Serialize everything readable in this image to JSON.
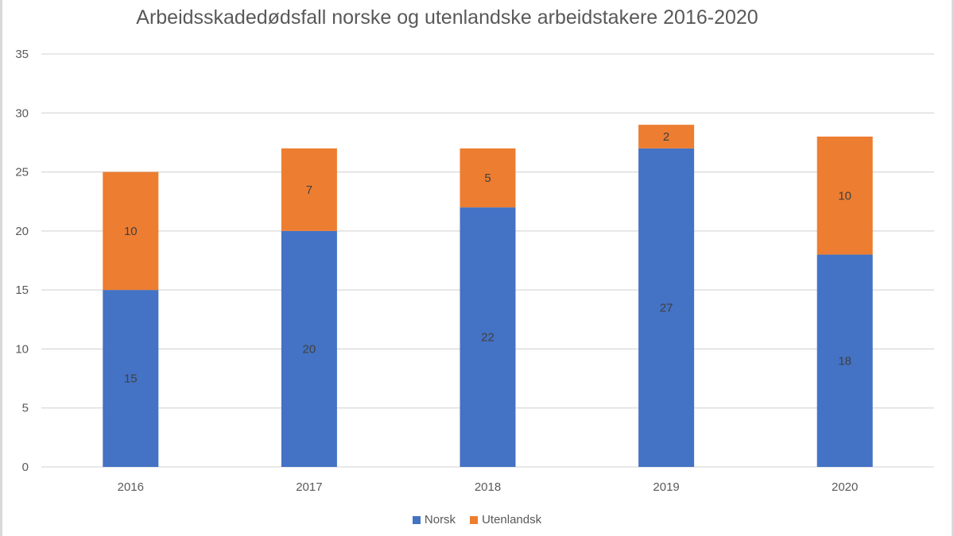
{
  "chart_data": {
    "type": "bar",
    "stacked": true,
    "title": "Arbeidsskadedødsfall  norske og utenlandske arbeidstakere 2016-2020",
    "xlabel": "",
    "ylabel": "",
    "categories": [
      "2016",
      "2017",
      "2018",
      "2019",
      "2020"
    ],
    "series": [
      {
        "name": "Norsk",
        "color": "#4472C4",
        "values": [
          15,
          20,
          22,
          27,
          18
        ]
      },
      {
        "name": "Utenlandsk",
        "color": "#ED7D31",
        "values": [
          10,
          7,
          5,
          2,
          10
        ]
      }
    ],
    "ylim": [
      0,
      35
    ],
    "yticks": [
      "0",
      "5",
      "10",
      "15",
      "20",
      "25",
      "30",
      "35"
    ],
    "grid": true,
    "legend_position": "bottom"
  }
}
